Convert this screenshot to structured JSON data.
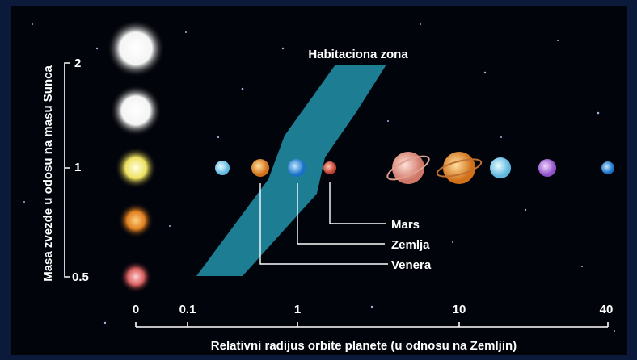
{
  "zone_label": "Habitaciona zona",
  "y_axis": {
    "label": "Masa zvezde u odosu na masu Sunca",
    "ticks": [
      "2",
      "1",
      "0.5"
    ]
  },
  "x_axis": {
    "label": "Relativni radijus orbite planete (u odnosu na Zemljin)",
    "ticks": [
      "0",
      "0.1",
      "1",
      "10",
      "40"
    ]
  },
  "planet_labels": [
    "Mars",
    "Zemlja",
    "Venera"
  ]
}
